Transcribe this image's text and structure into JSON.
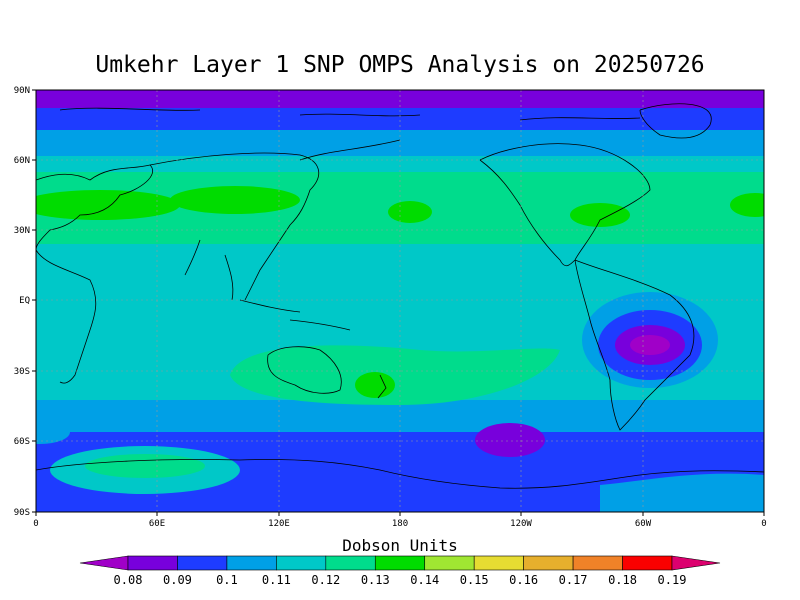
{
  "title": "Umkehr Layer 1 SNP OMPS Analysis on 20250726",
  "y_ticks": [
    "90N",
    "60N",
    "30N",
    "EQ",
    "30S",
    "60S",
    "90S"
  ],
  "x_ticks": [
    "0",
    "60E",
    "120E",
    "180",
    "120W",
    "60W",
    "0"
  ],
  "colorbar": {
    "title": "Dobson Units",
    "labels": [
      "0.08",
      "0.09",
      "0.1",
      "0.11",
      "0.12",
      "0.13",
      "0.14",
      "0.15",
      "0.16",
      "0.17",
      "0.18",
      "0.19"
    ],
    "colors": [
      "#a000c8",
      "#7800dc",
      "#1e3cff",
      "#00a0e6",
      "#00c8c8",
      "#00dc8c",
      "#00dc00",
      "#a0e632",
      "#e6dc32",
      "#e6af2d",
      "#f08228",
      "#fa0000",
      "#dc006e"
    ]
  },
  "chart_data": {
    "type": "heatmap",
    "title": "Umkehr Layer 1 SNP OMPS Analysis on 20250726",
    "xlabel": "",
    "ylabel": "",
    "xlim": [
      0,
      360
    ],
    "ylim": [
      -90,
      90
    ],
    "x_tick_labels": [
      "0",
      "60E",
      "120E",
      "180",
      "120W",
      "60W",
      "0"
    ],
    "y_tick_labels": [
      "90N",
      "60N",
      "30N",
      "EQ",
      "30S",
      "60S",
      "90S"
    ],
    "unit": "Dobson Units",
    "bands": [
      {
        "lat_range": [
          80,
          90
        ],
        "value": 0.085
      },
      {
        "lat_range": [
          70,
          80
        ],
        "value": 0.1
      },
      {
        "lat_range": [
          55,
          70
        ],
        "value": 0.11
      },
      {
        "lat_range": [
          45,
          55
        ],
        "value": 0.12
      },
      {
        "lat_range": [
          25,
          45
        ],
        "value": 0.125
      },
      {
        "lat_range": [
          -25,
          25
        ],
        "value": 0.115
      },
      {
        "lat_range": [
          -45,
          -25
        ],
        "value": 0.12
      },
      {
        "lat_range": [
          -60,
          -45
        ],
        "value": 0.11
      },
      {
        "lat_range": [
          -90,
          -60
        ],
        "value": 0.095
      }
    ],
    "features": [
      {
        "lon": 10,
        "lat": 42,
        "value": 0.135
      },
      {
        "lon": 90,
        "lat": 43,
        "value": 0.135
      },
      {
        "lon": 160,
        "lat": -35,
        "value": 0.135
      },
      {
        "lon": 160,
        "lat": 40,
        "value": 0.135
      },
      {
        "lon": 290,
        "lat": 38,
        "value": 0.135
      },
      {
        "lon": 305,
        "lat": -20,
        "value": 0.085
      },
      {
        "lon": 215,
        "lat": -58,
        "value": 0.085
      },
      {
        "lon": 60,
        "lat": -70,
        "value": 0.12
      }
    ]
  }
}
